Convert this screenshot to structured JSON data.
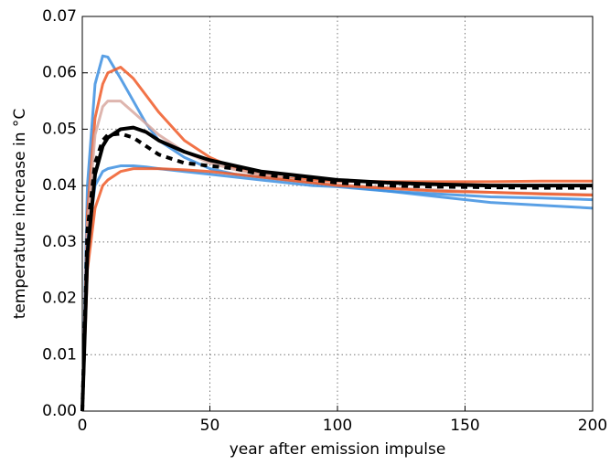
{
  "chart_data": {
    "type": "line",
    "xlabel": "year after emission impulse",
    "ylabel": "temperature increase in °C",
    "x": [
      0,
      2,
      5,
      8,
      10,
      15,
      20,
      25,
      30,
      40,
      50,
      60,
      70,
      80,
      90,
      100,
      120,
      140,
      160,
      180,
      200
    ],
    "series": [
      {
        "color": "#3d8fe0",
        "values": [
          0,
          0.04,
          0.058,
          0.063,
          0.0628,
          0.059,
          0.055,
          0.051,
          0.048,
          0.045,
          0.043,
          0.042,
          0.0415,
          0.041,
          0.0405,
          0.04,
          0.039,
          0.0385,
          0.038,
          0.0378,
          0.0375
        ]
      },
      {
        "color": "#f05a28",
        "values": [
          0,
          0.035,
          0.052,
          0.058,
          0.06,
          0.061,
          0.059,
          0.056,
          0.053,
          0.048,
          0.045,
          0.043,
          0.042,
          0.0413,
          0.041,
          0.0408,
          0.0407,
          0.0407,
          0.0407,
          0.0408,
          0.0408
        ]
      },
      {
        "color": "#d8a8a0",
        "values": [
          0,
          0.033,
          0.049,
          0.054,
          0.055,
          0.055,
          0.053,
          0.051,
          0.049,
          0.046,
          0.044,
          0.0428,
          0.042,
          0.0412,
          0.0406,
          0.0402,
          0.0396,
          0.0392,
          0.0388,
          0.0386,
          0.0384
        ]
      },
      {
        "color": "#3d8fe0",
        "values": [
          0,
          0.03,
          0.04,
          0.0425,
          0.043,
          0.0435,
          0.0435,
          0.0433,
          0.043,
          0.0425,
          0.042,
          0.0415,
          0.041,
          0.0405,
          0.04,
          0.0398,
          0.039,
          0.038,
          0.037,
          0.0365,
          0.036
        ]
      },
      {
        "color": "#f05a28",
        "values": [
          0,
          0.025,
          0.036,
          0.04,
          0.041,
          0.0425,
          0.043,
          0.043,
          0.043,
          0.0428,
          0.0425,
          0.042,
          0.0415,
          0.041,
          0.0405,
          0.04,
          0.0395,
          0.039,
          0.0388,
          0.0385,
          0.0383
        ]
      },
      {
        "color": "#000000",
        "values": [
          0,
          0.028,
          0.042,
          0.047,
          0.0485,
          0.05,
          0.0503,
          0.0495,
          0.048,
          0.046,
          0.0445,
          0.0435,
          0.0425,
          0.042,
          0.0415,
          0.041,
          0.0405,
          0.0402,
          0.04,
          0.04,
          0.04
        ]
      },
      {
        "color": "#000000",
        "dash": true,
        "values": [
          0,
          0.032,
          0.044,
          0.048,
          0.049,
          0.0492,
          0.0485,
          0.047,
          0.0455,
          0.044,
          0.0435,
          0.043,
          0.042,
          0.0415,
          0.041,
          0.0405,
          0.04,
          0.0398,
          0.0397,
          0.0396,
          0.0396
        ]
      }
    ],
    "xlim": [
      0,
      200
    ],
    "xticks": [
      0,
      50,
      100,
      150,
      200
    ],
    "ylim": [
      0,
      0.07
    ],
    "yticks": [
      {
        "value": 0,
        "label": "0.00"
      },
      {
        "value": 0.01,
        "label": "0.01"
      },
      {
        "value": 0.02,
        "label": "0.02"
      },
      {
        "value": 0.03,
        "label": "0.03"
      },
      {
        "value": 0.04,
        "label": "0.04"
      },
      {
        "value": 0.05,
        "label": "0.05"
      },
      {
        "value": 0.06,
        "label": "0.06"
      },
      {
        "value": 0.07,
        "label": "0.07"
      }
    ],
    "grid": true
  }
}
